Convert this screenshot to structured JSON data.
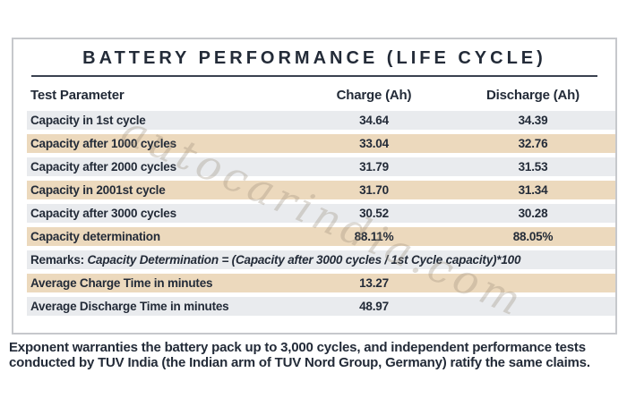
{
  "title": "BATTERY PERFORMANCE (LIFE CYCLE)",
  "watermark": "autocarindia.com",
  "table": {
    "headers": [
      "Test Parameter",
      "Charge (Ah)",
      "Discharge (Ah)"
    ],
    "rows": [
      {
        "label": "Capacity in 1st cycle",
        "charge": "34.64",
        "discharge": "34.39"
      },
      {
        "label": "Capacity after 1000 cycles",
        "charge": "33.04",
        "discharge": "32.76"
      },
      {
        "label": "Capacity after 2000 cycles",
        "charge": "31.79",
        "discharge": "31.53"
      },
      {
        "label": "Capacity in 2001st cycle",
        "charge": "31.70",
        "discharge": "31.34"
      },
      {
        "label": "Capacity after 3000 cycles",
        "charge": "30.52",
        "discharge": "30.28"
      },
      {
        "label": "Capacity determination",
        "charge": "88.11%",
        "discharge": "88.05%"
      },
      {
        "prefix": "Remarks:",
        "text": "Capacity Determination = (Capacity after 3000 cycles / 1st Cycle capacity)*100"
      },
      {
        "label": "Average Charge Time in minutes",
        "charge": "13.27",
        "discharge": ""
      },
      {
        "label": "Average Discharge Time in minutes",
        "charge": "48.97",
        "discharge": ""
      }
    ]
  },
  "footer": "Exponent warranties the battery pack up to 3,000 cycles, and independent performance tests conducted by TUV India (the Indian arm of TUV Nord Group, Germany) ratify the same claims.",
  "colors": {
    "row_tan": "#ecd9bd",
    "row_gray": "#e9ebee",
    "text_dark": "#232b38",
    "card_border": "#c6c8cc",
    "rule_dark": "#3a4150",
    "watermark": "rgba(150,135,115,0.30)"
  }
}
